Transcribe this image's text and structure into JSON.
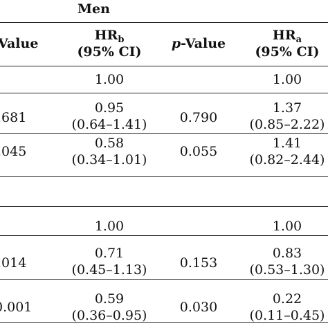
{
  "table": {
    "group_label": "Men",
    "headers": {
      "col1": "Value",
      "col2_main": "HR",
      "col2_sub": "b",
      "col2_ci": "(95% CI)",
      "col3_italic": "p",
      "col3_rest": "-Value",
      "col4_main": "HR",
      "col4_sub": "a",
      "col4_ci": "(95% CI)"
    },
    "rows": [
      {
        "c1": "",
        "c2a": "1.00",
        "c2b": "",
        "c3": "",
        "c4a": "1.00",
        "c4b": ""
      },
      {
        "c1": ".681",
        "c2a": "0.95",
        "c2b": "(0.64–1.41)",
        "c3": "0.790",
        "c4a": "1.37",
        "c4b": "(0.85–2.22)"
      },
      {
        "c1": ".045",
        "c2a": "0.58",
        "c2b": "(0.34–1.01)",
        "c3": "0.055",
        "c4a": "1.41",
        "c4b": "(0.82–2.44)"
      },
      {
        "c1": "",
        "c2a": "1.00",
        "c2b": "",
        "c3": "",
        "c4a": "1.00",
        "c4b": ""
      },
      {
        "c1": ".014",
        "c2a": "0.71",
        "c2b": "(0.45–1.13)",
        "c3": "0.153",
        "c4a": "0.83",
        "c4b": "(0.53–1.30)"
      },
      {
        "c1": "0.001",
        "c2a": "0.59",
        "c2b": "(0.36–0.95)",
        "c3": "0.030",
        "c4a": "0.22",
        "c4b": "(0.11–0.45)"
      }
    ]
  }
}
